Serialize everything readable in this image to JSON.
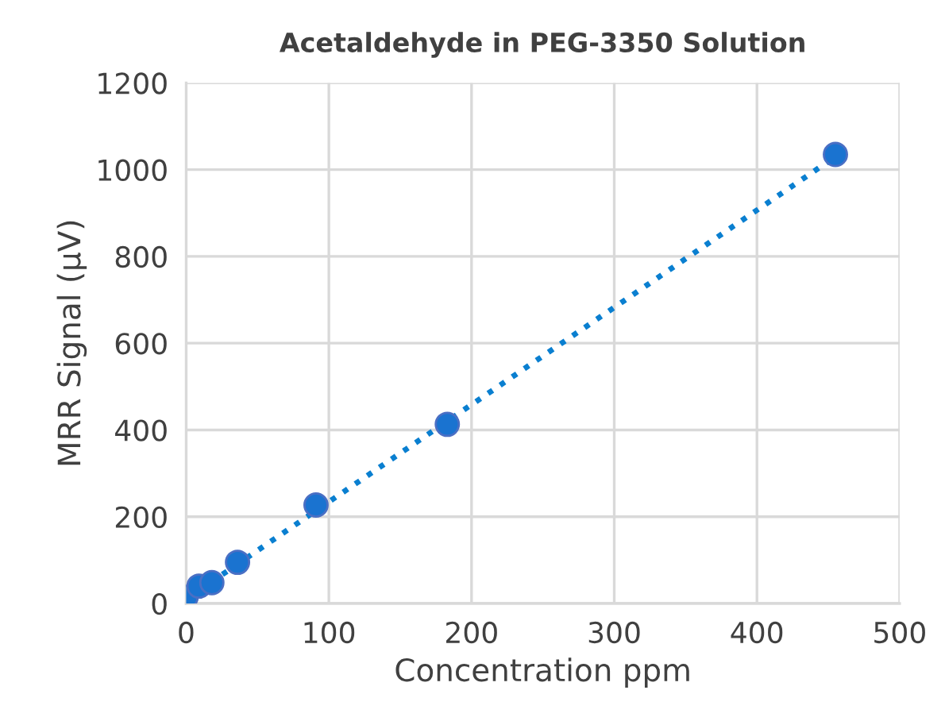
{
  "chart_data": {
    "type": "scatter",
    "title": "Acetaldehyde in PEG-3350 Solution",
    "xlabel": "Concentration ppm",
    "ylabel": "MRR Signal (µV)",
    "series": [
      {
        "type": "line",
        "color": "#0a7fd0",
        "line_style": "dotted",
        "marker": "none",
        "x": [
          0,
          455
        ],
        "values": [
          10,
          1030
        ]
      },
      {
        "color": "#1a73d0",
        "marker": "circle",
        "x": [
          0,
          9,
          18,
          36,
          91,
          183,
          455
        ],
        "values": [
          15,
          40,
          48,
          95,
          227,
          413,
          1035
        ]
      }
    ],
    "xlim": [
      0,
      500
    ],
    "xticks": [
      0,
      100,
      200,
      300,
      400,
      500
    ],
    "ylim": [
      0,
      1200
    ],
    "yticks": [
      0,
      200,
      400,
      600,
      800,
      1000,
      1200
    ],
    "grid": true,
    "legend": false
  }
}
